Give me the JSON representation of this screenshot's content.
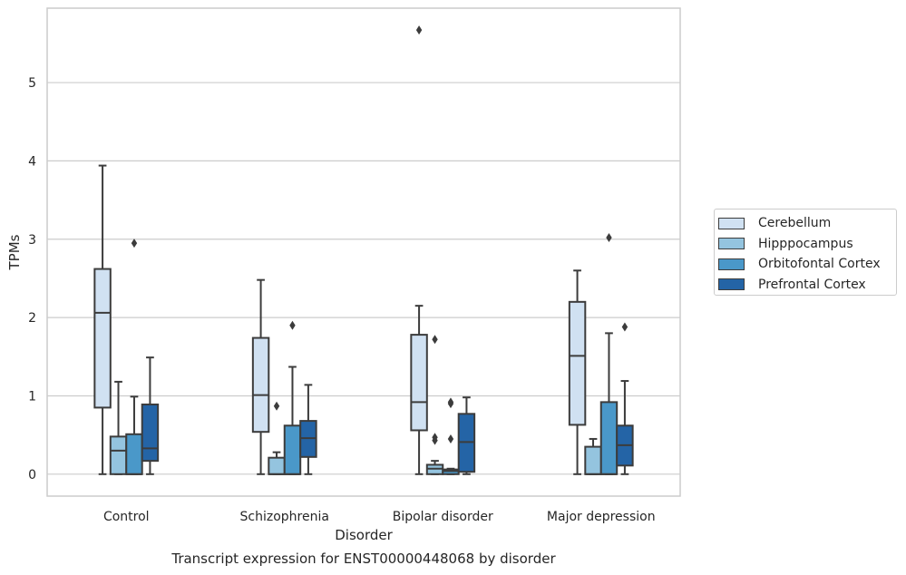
{
  "chart_data": {
    "type": "box",
    "caption": "Transcript expression for ENST00000448068 by disorder",
    "xlabel": "Disorder",
    "ylabel": "TPMs",
    "ylim": [
      -0.28,
      5.95
    ],
    "yticks": [
      0,
      1,
      2,
      3,
      4,
      5
    ],
    "grid": true,
    "legend_position": "right",
    "categories": [
      "Control",
      "Schizophrenia",
      "Bipolar disorder",
      "Major depression"
    ],
    "series": [
      {
        "name": "Cerebellum",
        "color": "#d0e1f2",
        "boxes": [
          {
            "min": 0,
            "q1": 0.85,
            "median": 2.06,
            "q3": 2.62,
            "max": 3.94,
            "outliers": []
          },
          {
            "min": 0,
            "q1": 0.54,
            "median": 1.01,
            "q3": 1.74,
            "max": 2.48,
            "outliers": []
          },
          {
            "min": 0,
            "q1": 0.56,
            "median": 0.92,
            "q3": 1.78,
            "max": 2.15,
            "outliers": [
              5.67
            ]
          },
          {
            "min": 0,
            "q1": 0.63,
            "median": 1.51,
            "q3": 2.2,
            "max": 2.6,
            "outliers": []
          }
        ]
      },
      {
        "name": "Hipppocampus",
        "color": "#94c4df",
        "boxes": [
          {
            "min": 0,
            "q1": 0,
            "median": 0.3,
            "q3": 0.48,
            "max": 1.18,
            "outliers": []
          },
          {
            "min": 0,
            "q1": 0,
            "median": 0,
            "q3": 0.21,
            "max": 0.28,
            "outliers": [
              0.87
            ]
          },
          {
            "min": 0,
            "q1": 0,
            "median": 0.07,
            "q3": 0.12,
            "max": 0.17,
            "outliers": [
              0.43,
              0.47,
              1.72
            ]
          },
          {
            "min": 0,
            "q1": 0,
            "median": 0,
            "q3": 0.35,
            "max": 0.45,
            "outliers": []
          }
        ]
      },
      {
        "name": "Orbitofontal Cortex",
        "color": "#4a98c9",
        "boxes": [
          {
            "min": 0,
            "q1": 0,
            "median": 0,
            "q3": 0.51,
            "max": 0.99,
            "outliers": [
              2.95
            ]
          },
          {
            "min": 0,
            "q1": 0,
            "median": 0,
            "q3": 0.62,
            "max": 1.37,
            "outliers": [
              1.9
            ]
          },
          {
            "min": 0,
            "q1": 0,
            "median": 0.04,
            "q3": 0.06,
            "max": 0.07,
            "outliers": [
              0.45,
              0.9,
              0.92
            ]
          },
          {
            "min": 0,
            "q1": 0,
            "median": 0,
            "q3": 0.92,
            "max": 1.8,
            "outliers": [
              3.02
            ]
          }
        ]
      },
      {
        "name": "Prefrontal Cortex",
        "color": "#2464a6",
        "boxes": [
          {
            "min": 0,
            "q1": 0.17,
            "median": 0.33,
            "q3": 0.89,
            "max": 1.49,
            "outliers": []
          },
          {
            "min": 0,
            "q1": 0.22,
            "median": 0.46,
            "q3": 0.68,
            "max": 1.14,
            "outliers": []
          },
          {
            "min": 0,
            "q1": 0.03,
            "median": 0.41,
            "q3": 0.77,
            "max": 0.98,
            "outliers": []
          },
          {
            "min": 0,
            "q1": 0.11,
            "median": 0.37,
            "q3": 0.62,
            "max": 1.19,
            "outliers": [
              1.88
            ]
          }
        ]
      }
    ]
  }
}
